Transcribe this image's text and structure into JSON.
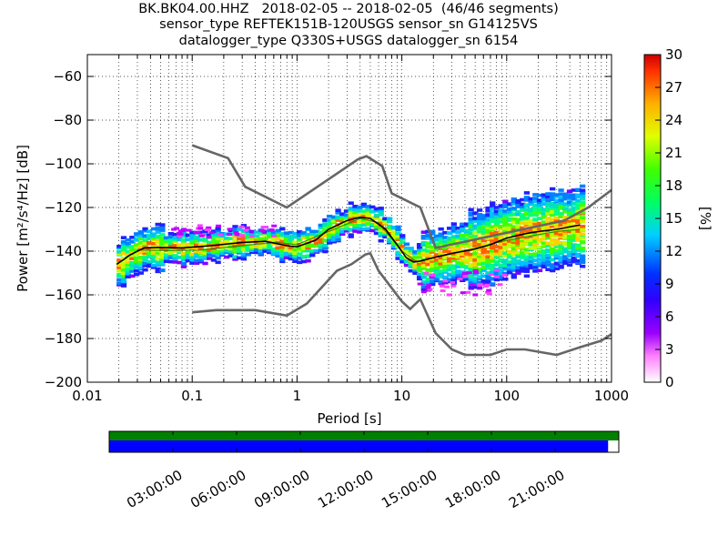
{
  "title_lines": [
    "BK.BK04.00.HHZ   2018-02-05 -- 2018-02-05  (46/46 segments)",
    "sensor_type REFTEK151B-120USGS sensor_sn G14125VS",
    "datalogger_type Q330S+USGS datalogger_sn 6154"
  ],
  "chart_data": {
    "type": "heatmap",
    "xlabel": "Period [s]",
    "ylabel": "Power [m²/s⁴/Hz] [dB]",
    "x_scale": "log",
    "xlim": [
      0.01,
      1000
    ],
    "ylim": [
      -200,
      -50
    ],
    "x_ticks": [
      0.01,
      0.1,
      1,
      10,
      100,
      1000
    ],
    "x_tick_labels": [
      "0.01",
      "0.1",
      "1",
      "10",
      "100",
      "1000"
    ],
    "y_ticks": [
      -200,
      -180,
      -160,
      -140,
      -120,
      -100,
      -80,
      -60
    ],
    "y_tick_labels": [
      "−200",
      "−180",
      "−160",
      "−140",
      "−120",
      "−100",
      "−80",
      "−60"
    ],
    "grid": "dotted",
    "colorbar": {
      "label": "[%]",
      "range": [
        0,
        30
      ],
      "ticks": [
        0,
        3,
        6,
        9,
        12,
        15,
        18,
        21,
        24,
        27,
        30
      ]
    },
    "reference_curves": {
      "upper": [
        [
          0.1,
          -91.5
        ],
        [
          0.22,
          -97.4
        ],
        [
          0.32,
          -110.5
        ],
        [
          0.8,
          -120
        ],
        [
          3.8,
          -98
        ],
        [
          4.6,
          -96.5
        ],
        [
          6.5,
          -101
        ],
        [
          8,
          -113.5
        ],
        [
          15,
          -120
        ],
        [
          21,
          -138.5
        ],
        [
          354,
          -126
        ],
        [
          600,
          -120
        ],
        [
          1000,
          -112
        ]
      ],
      "lower": [
        [
          0.1,
          -168
        ],
        [
          0.17,
          -167
        ],
        [
          0.4,
          -167
        ],
        [
          0.8,
          -169.5
        ],
        [
          1.24,
          -164
        ],
        [
          2.4,
          -149
        ],
        [
          3.3,
          -146
        ],
        [
          4.5,
          -141.5
        ],
        [
          5,
          -141
        ],
        [
          6,
          -149
        ],
        [
          10,
          -163
        ],
        [
          12,
          -166.5
        ],
        [
          15,
          -162
        ],
        [
          21,
          -177.5
        ],
        [
          30,
          -185
        ],
        [
          40,
          -187.5
        ],
        [
          70,
          -187.5
        ],
        [
          100,
          -185
        ],
        [
          150,
          -185
        ],
        [
          300,
          -187.5
        ],
        [
          500,
          -184
        ],
        [
          800,
          -181
        ],
        [
          1000,
          -178
        ]
      ]
    },
    "mode_curve": [
      [
        0.019,
        -146
      ],
      [
        0.022,
        -144
      ],
      [
        0.025,
        -142
      ],
      [
        0.03,
        -140
      ],
      [
        0.035,
        -138.5
      ],
      [
        0.05,
        -138.3
      ],
      [
        0.08,
        -138.5
      ],
      [
        0.15,
        -137.5
      ],
      [
        0.3,
        -136
      ],
      [
        0.5,
        -135.5
      ],
      [
        0.8,
        -137.5
      ],
      [
        1.0,
        -138
      ],
      [
        1.5,
        -135
      ],
      [
        2.0,
        -130
      ],
      [
        3.0,
        -126
      ],
      [
        4.0,
        -124.5
      ],
      [
        5.0,
        -125
      ],
      [
        7.0,
        -130
      ],
      [
        9.0,
        -137
      ],
      [
        11.0,
        -143
      ],
      [
        13.0,
        -145
      ],
      [
        15.0,
        -144.5
      ],
      [
        20.0,
        -143
      ],
      [
        30.0,
        -141
      ],
      [
        50.0,
        -139
      ],
      [
        70.0,
        -137
      ],
      [
        100.0,
        -134
      ],
      [
        150.0,
        -132
      ],
      [
        200.0,
        -131
      ],
      [
        300.0,
        -130
      ],
      [
        500.0,
        -128
      ]
    ],
    "mean_curve": [
      [
        0.03,
        -139.5
      ],
      [
        0.06,
        -139.7
      ],
      [
        0.12,
        -139.5
      ],
      [
        0.3,
        -137.5
      ],
      [
        0.6,
        -136
      ],
      [
        1.0,
        -137
      ],
      [
        2.0,
        -131
      ],
      [
        4.0,
        -125
      ],
      [
        6.0,
        -127
      ],
      [
        10.0,
        -140
      ],
      [
        14.0,
        -145
      ],
      [
        20.0,
        -143
      ],
      [
        40.0,
        -140
      ],
      [
        100.0,
        -135
      ],
      [
        300.0,
        -131
      ],
      [
        500.0,
        -130
      ]
    ],
    "density": [
      {
        "x": 0.5,
        "y_low": -148,
        "y_high": -136,
        "spread": 1
      },
      {
        "x": 0.8,
        "y_low": -145,
        "y_high": -133,
        "spread": 1.2
      },
      {
        "x": 1.1,
        "y_low": -145,
        "y_high": -128,
        "spread": 0.6
      },
      {
        "x": 1.4,
        "y_low": -145,
        "y_high": -138,
        "spread": 0.8
      }
    ]
  },
  "timeline": {
    "tick_labels": [
      "03:00:00",
      "06:00:00",
      "09:00:00",
      "12:00:00",
      "15:00:00",
      "18:00:00",
      "21:00:00"
    ],
    "coverage_fraction": 0.979,
    "colors": {
      "upper": "#008000",
      "lower": "#0000ff"
    }
  },
  "colors": {
    "reference_curve": "#666666",
    "mode_curve": "#000000"
  }
}
